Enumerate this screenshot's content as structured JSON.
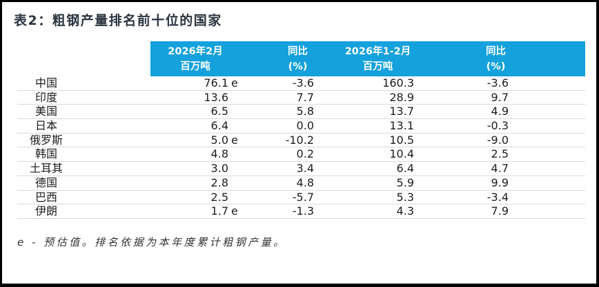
{
  "title": "表2：粗钢产量排名前十位的国家",
  "colors": {
    "header_bg": "#14a1dc",
    "header_text": "#ffffff",
    "title_text": "#2b3440",
    "row_divider": "#d9d9d9",
    "frame_border": "#000000"
  },
  "table": {
    "headers": {
      "feb": {
        "line1": "2026年2月",
        "line2": "百万吨"
      },
      "yoy_feb": {
        "line1": "同比",
        "line2": "(%)"
      },
      "ytd": {
        "line1": "2026年1-2月",
        "line2": "百万吨"
      },
      "yoy_ytd": {
        "line1": "同比",
        "line2": "(%)"
      }
    },
    "rows": [
      {
        "country": "中国",
        "feb": "76.1",
        "feb_suffix": "e",
        "yoy_feb": "-3.6",
        "ytd": "160.3",
        "yoy_ytd": "-3.6"
      },
      {
        "country": "印度",
        "feb": "13.6",
        "feb_suffix": "",
        "yoy_feb": "7.7",
        "ytd": "28.9",
        "yoy_ytd": "9.7"
      },
      {
        "country": "美国",
        "feb": "6.5",
        "feb_suffix": "",
        "yoy_feb": "5.8",
        "ytd": "13.7",
        "yoy_ytd": "4.9"
      },
      {
        "country": "日本",
        "feb": "6.4",
        "feb_suffix": "",
        "yoy_feb": "0.0",
        "ytd": "13.1",
        "yoy_ytd": "-0.3"
      },
      {
        "country": "俄罗斯",
        "feb": "5.0",
        "feb_suffix": "e",
        "yoy_feb": "-10.2",
        "ytd": "10.5",
        "yoy_ytd": "-9.0"
      },
      {
        "country": "韩国",
        "feb": "4.8",
        "feb_suffix": "",
        "yoy_feb": "0.2",
        "ytd": "10.4",
        "yoy_ytd": "2.5"
      },
      {
        "country": "土耳其",
        "feb": "3.0",
        "feb_suffix": "",
        "yoy_feb": "3.4",
        "ytd": "6.4",
        "yoy_ytd": "4.7"
      },
      {
        "country": "德国",
        "feb": "2.8",
        "feb_suffix": "",
        "yoy_feb": "4.8",
        "ytd": "5.9",
        "yoy_ytd": "9.9"
      },
      {
        "country": "巴西",
        "feb": "2.5",
        "feb_suffix": "",
        "yoy_feb": "-5.7",
        "ytd": "5.3",
        "yoy_ytd": "-3.4"
      },
      {
        "country": "伊朗",
        "feb": "1.7",
        "feb_suffix": "e",
        "yoy_feb": "-1.3",
        "ytd": "4.3",
        "yoy_ytd": "7.9"
      }
    ]
  },
  "footnote": "e - 预估值。排名依据为本年度累计粗钢产量。"
}
